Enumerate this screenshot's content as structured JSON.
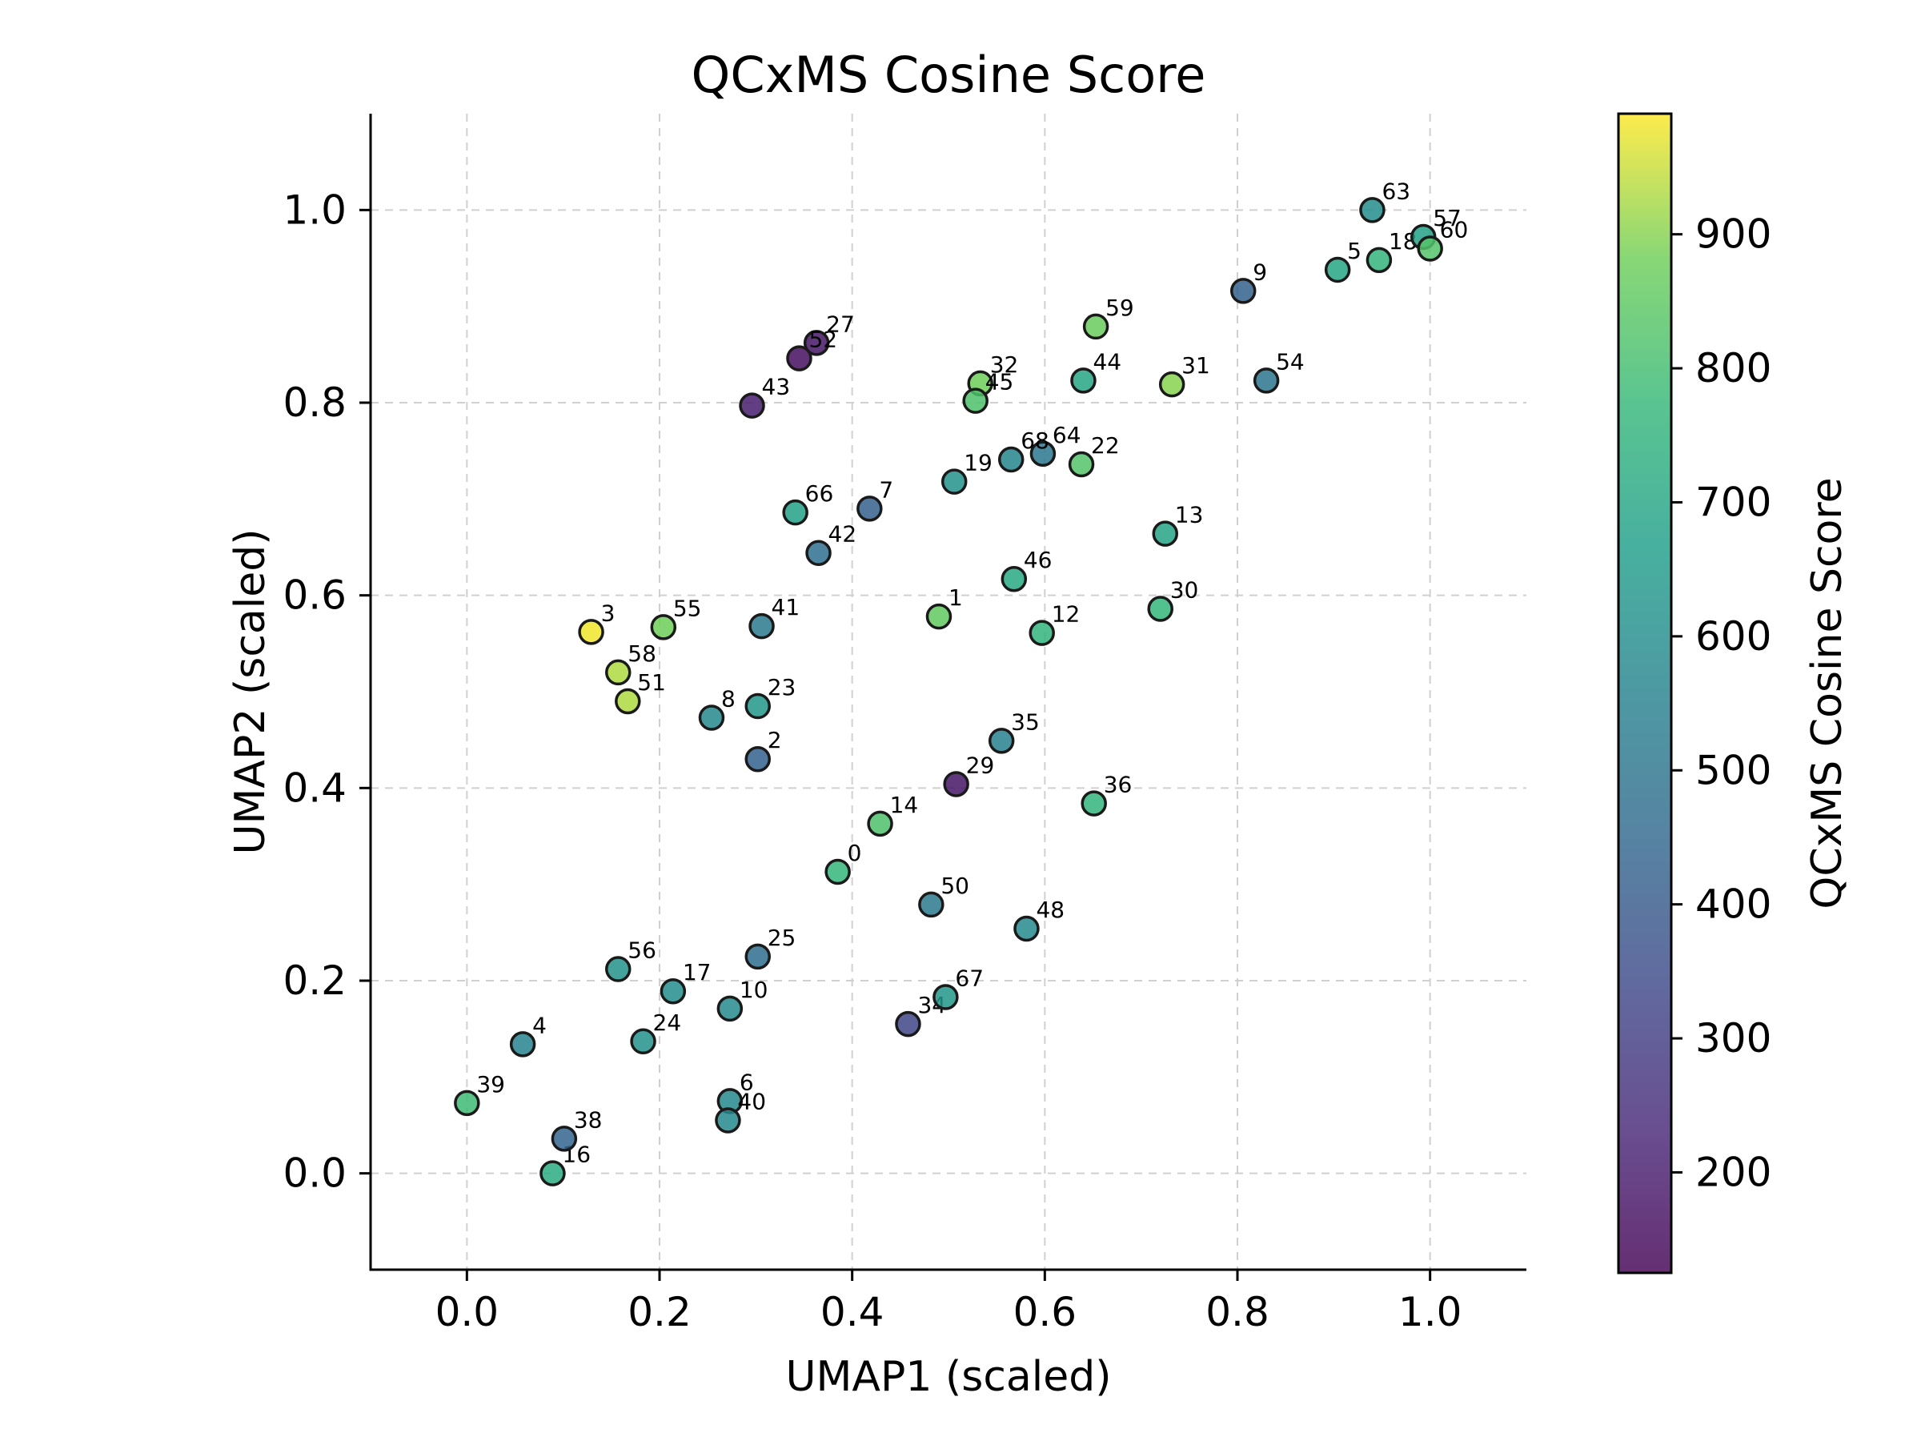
{
  "chart_data": {
    "type": "scatter",
    "title": "QCxMS Cosine Score",
    "xlabel": "UMAP1 (scaled)",
    "ylabel": "UMAP2 (scaled)",
    "xlim": [
      -0.1,
      1.1
    ],
    "ylim": [
      -0.1,
      1.1
    ],
    "xticks": [
      "0.0",
      "0.2",
      "0.4",
      "0.6",
      "0.8",
      "1.0"
    ],
    "yticks": [
      "0.0",
      "0.2",
      "0.4",
      "0.6",
      "0.8",
      "1.0"
    ],
    "grid": true,
    "colormap": "viridis",
    "colorbar": {
      "label": "QCxMS Cosine Score",
      "range": [
        125,
        990
      ],
      "ticks": [
        "200",
        "300",
        "400",
        "500",
        "600",
        "700",
        "800",
        "900"
      ]
    },
    "points": [
      {
        "label": "0",
        "x": 0.385,
        "y": 0.313,
        "value": 770
      },
      {
        "label": "1",
        "x": 0.49,
        "y": 0.578,
        "value": 860
      },
      {
        "label": "2",
        "x": 0.302,
        "y": 0.43,
        "value": 430
      },
      {
        "label": "3",
        "x": 0.129,
        "y": 0.562,
        "value": 980
      },
      {
        "label": "4",
        "x": 0.058,
        "y": 0.134,
        "value": 560
      },
      {
        "label": "5",
        "x": 0.904,
        "y": 0.938,
        "value": 700
      },
      {
        "label": "6",
        "x": 0.273,
        "y": 0.075,
        "value": 580
      },
      {
        "label": "7",
        "x": 0.418,
        "y": 0.69,
        "value": 420
      },
      {
        "label": "8",
        "x": 0.254,
        "y": 0.473,
        "value": 580
      },
      {
        "label": "9",
        "x": 0.806,
        "y": 0.916,
        "value": 430
      },
      {
        "label": "10",
        "x": 0.273,
        "y": 0.171,
        "value": 590
      },
      {
        "label": "12",
        "x": 0.597,
        "y": 0.561,
        "value": 760
      },
      {
        "label": "13",
        "x": 0.725,
        "y": 0.664,
        "value": 690
      },
      {
        "label": "14",
        "x": 0.429,
        "y": 0.363,
        "value": 820
      },
      {
        "label": "16",
        "x": 0.089,
        "y": 0.0,
        "value": 720
      },
      {
        "label": "17",
        "x": 0.214,
        "y": 0.189,
        "value": 600
      },
      {
        "label": "18",
        "x": 0.947,
        "y": 0.948,
        "value": 760
      },
      {
        "label": "19",
        "x": 0.506,
        "y": 0.718,
        "value": 620
      },
      {
        "label": "22",
        "x": 0.638,
        "y": 0.736,
        "value": 830
      },
      {
        "label": "23",
        "x": 0.302,
        "y": 0.485,
        "value": 640
      },
      {
        "label": "24",
        "x": 0.183,
        "y": 0.137,
        "value": 620
      },
      {
        "label": "25",
        "x": 0.302,
        "y": 0.225,
        "value": 470
      },
      {
        "label": "27",
        "x": 0.363,
        "y": 0.862,
        "value": 180
      },
      {
        "label": "29",
        "x": 0.508,
        "y": 0.404,
        "value": 180
      },
      {
        "label": "30",
        "x": 0.72,
        "y": 0.586,
        "value": 770
      },
      {
        "label": "31",
        "x": 0.732,
        "y": 0.819,
        "value": 900
      },
      {
        "label": "32",
        "x": 0.533,
        "y": 0.82,
        "value": 880
      },
      {
        "label": "34",
        "x": 0.458,
        "y": 0.155,
        "value": 330
      },
      {
        "label": "35",
        "x": 0.555,
        "y": 0.449,
        "value": 550
      },
      {
        "label": "36",
        "x": 0.651,
        "y": 0.384,
        "value": 760
      },
      {
        "label": "38",
        "x": 0.101,
        "y": 0.036,
        "value": 440
      },
      {
        "label": "39",
        "x": 0.0,
        "y": 0.073,
        "value": 790
      },
      {
        "label": "40",
        "x": 0.271,
        "y": 0.055,
        "value": 580
      },
      {
        "label": "41",
        "x": 0.306,
        "y": 0.568,
        "value": 520
      },
      {
        "label": "42",
        "x": 0.365,
        "y": 0.644,
        "value": 480
      },
      {
        "label": "43",
        "x": 0.296,
        "y": 0.797,
        "value": 200
      },
      {
        "label": "44",
        "x": 0.64,
        "y": 0.823,
        "value": 700
      },
      {
        "label": "45",
        "x": 0.528,
        "y": 0.802,
        "value": 820
      },
      {
        "label": "46",
        "x": 0.568,
        "y": 0.617,
        "value": 710
      },
      {
        "label": "48",
        "x": 0.581,
        "y": 0.254,
        "value": 590
      },
      {
        "label": "50",
        "x": 0.482,
        "y": 0.279,
        "value": 520
      },
      {
        "label": "51",
        "x": 0.167,
        "y": 0.49,
        "value": 930
      },
      {
        "label": "52",
        "x": 0.345,
        "y": 0.846,
        "value": 160
      },
      {
        "label": "54",
        "x": 0.83,
        "y": 0.823,
        "value": 500
      },
      {
        "label": "55",
        "x": 0.204,
        "y": 0.567,
        "value": 880
      },
      {
        "label": "56",
        "x": 0.157,
        "y": 0.212,
        "value": 620
      },
      {
        "label": "57",
        "x": 0.993,
        "y": 0.972,
        "value": 680
      },
      {
        "label": "58",
        "x": 0.157,
        "y": 0.52,
        "value": 930
      },
      {
        "label": "59",
        "x": 0.653,
        "y": 0.879,
        "value": 870
      },
      {
        "label": "60",
        "x": 1.0,
        "y": 0.96,
        "value": 830
      },
      {
        "label": "63",
        "x": 0.94,
        "y": 1.0,
        "value": 600
      },
      {
        "label": "64",
        "x": 0.598,
        "y": 0.747,
        "value": 510
      },
      {
        "label": "66",
        "x": 0.341,
        "y": 0.686,
        "value": 680
      },
      {
        "label": "67",
        "x": 0.497,
        "y": 0.183,
        "value": 640
      },
      {
        "label": "68",
        "x": 0.565,
        "y": 0.741,
        "value": 570
      }
    ]
  }
}
